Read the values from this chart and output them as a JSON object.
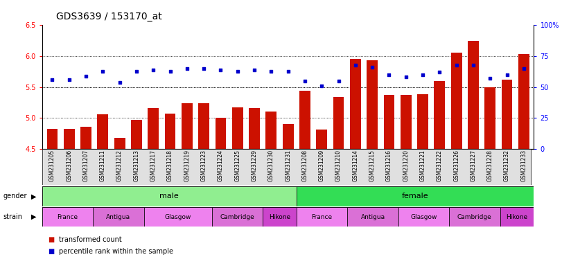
{
  "title": "GDS3639 / 153170_at",
  "samples": [
    "GSM231205",
    "GSM231206",
    "GSM231207",
    "GSM231211",
    "GSM231212",
    "GSM231213",
    "GSM231217",
    "GSM231218",
    "GSM231219",
    "GSM231223",
    "GSM231224",
    "GSM231225",
    "GSM231229",
    "GSM231230",
    "GSM231231",
    "GSM231208",
    "GSM231209",
    "GSM231210",
    "GSM231214",
    "GSM231215",
    "GSM231216",
    "GSM231220",
    "GSM231221",
    "GSM231222",
    "GSM231226",
    "GSM231227",
    "GSM231228",
    "GSM231232",
    "GSM231233"
  ],
  "bar_values": [
    4.83,
    4.83,
    4.86,
    5.06,
    4.68,
    4.97,
    5.16,
    5.07,
    5.24,
    5.24,
    5.01,
    5.17,
    5.16,
    5.1,
    4.9,
    5.44,
    4.81,
    5.34,
    5.96,
    5.93,
    5.37,
    5.37,
    5.39,
    5.6,
    6.06,
    6.25,
    5.5,
    5.62,
    6.04
  ],
  "dot_values": [
    56,
    56,
    59,
    63,
    54,
    63,
    64,
    63,
    65,
    65,
    64,
    63,
    64,
    63,
    63,
    55,
    51,
    55,
    68,
    66,
    60,
    58,
    60,
    62,
    68,
    68,
    57,
    60,
    65
  ],
  "gender_groups": [
    {
      "label": "male",
      "start": 0,
      "end": 15,
      "color": "#90EE90"
    },
    {
      "label": "female",
      "start": 15,
      "end": 29,
      "color": "#33DD55"
    }
  ],
  "strain_groups": [
    {
      "label": "France",
      "start": 0,
      "end": 3,
      "color": "#EE82EE"
    },
    {
      "label": "Antigua",
      "start": 3,
      "end": 6,
      "color": "#DA70D6"
    },
    {
      "label": "Glasgow",
      "start": 6,
      "end": 10,
      "color": "#EE82EE"
    },
    {
      "label": "Cambridge",
      "start": 10,
      "end": 13,
      "color": "#DA70D6"
    },
    {
      "label": "Hikone",
      "start": 13,
      "end": 15,
      "color": "#CC44CC"
    },
    {
      "label": "France",
      "start": 15,
      "end": 18,
      "color": "#EE82EE"
    },
    {
      "label": "Antigua",
      "start": 18,
      "end": 21,
      "color": "#DA70D6"
    },
    {
      "label": "Glasgow",
      "start": 21,
      "end": 24,
      "color": "#EE82EE"
    },
    {
      "label": "Cambridge",
      "start": 24,
      "end": 27,
      "color": "#DA70D6"
    },
    {
      "label": "Hikone",
      "start": 27,
      "end": 29,
      "color": "#CC44CC"
    }
  ],
  "bar_color": "#CC1100",
  "dot_color": "#0000CC",
  "bar_bottom": 4.5,
  "ylim_left": [
    4.5,
    6.5
  ],
  "ylim_right": [
    0,
    100
  ],
  "yticks_left": [
    4.5,
    5.0,
    5.5,
    6.0,
    6.5
  ],
  "yticks_right": [
    0,
    25,
    50,
    75,
    100
  ],
  "ytick_labels_right": [
    "0",
    "25",
    "50",
    "75",
    "100%"
  ],
  "grid_values": [
    5.0,
    5.5,
    6.0
  ],
  "title_fontsize": 10,
  "bar_width": 0.65,
  "n_male": 15,
  "n_total": 29
}
